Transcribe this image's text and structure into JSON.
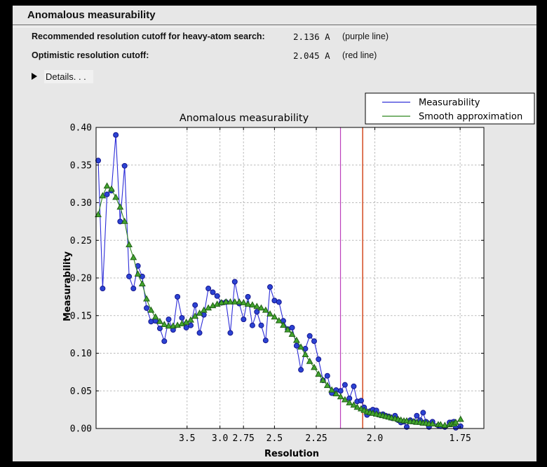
{
  "section": {
    "title": "Anomalous measurability"
  },
  "info": {
    "rows": [
      {
        "label": "Recommended resolution cutoff for heavy-atom search:",
        "value": "2.136 A",
        "note": "(purple line)"
      },
      {
        "label": "Optimistic resolution cutoff:",
        "value": "2.045 A",
        "note": "(red line)"
      }
    ],
    "details_label": "Details. . ."
  },
  "colors": {
    "window_bg": "#e7e7e7",
    "plot_bg": "#ffffff",
    "grid": "#b9b9b9",
    "purple_line": "#bb3fbb",
    "red_line": "#d03c10",
    "series_blue": "#2d2dd8",
    "series_green": "#2f861f"
  },
  "chart_data": {
    "type": "line",
    "title": "Anomalous measurability",
    "xlabel": "Resolution",
    "ylabel": "Measurability",
    "grid": true,
    "legend_position": "top-right",
    "x_axis_units": "1/d^2 (resolution in Angstrom, decreasing d to the right)",
    "x_range": [
      0,
      0.3478
    ],
    "ylim": [
      0,
      0.4
    ],
    "x_ticks": [
      {
        "label": "3.5",
        "s": 0.0816
      },
      {
        "label": "3.0",
        "s": 0.1111
      },
      {
        "label": "2.75",
        "s": 0.1322
      },
      {
        "label": "2.5",
        "s": 0.16
      },
      {
        "label": "2.25",
        "s": 0.1975
      },
      {
        "label": "2.0",
        "s": 0.25
      },
      {
        "label": "1.75",
        "s": 0.3265
      }
    ],
    "y_ticks": [
      {
        "label": "0.00",
        "v": 0.0
      },
      {
        "label": "0.05",
        "v": 0.05
      },
      {
        "label": "0.10",
        "v": 0.1
      },
      {
        "label": "0.15",
        "v": 0.15
      },
      {
        "label": "0.20",
        "v": 0.2
      },
      {
        "label": "0.25",
        "v": 0.25
      },
      {
        "label": "0.30",
        "v": 0.3
      },
      {
        "label": "0.35",
        "v": 0.35
      },
      {
        "label": "0.40",
        "v": 0.4
      }
    ],
    "vlines": [
      {
        "name": "purple line",
        "resolution_A": 2.136,
        "s": 0.2192,
        "color": "#bb3fbb",
        "width": 1.2
      },
      {
        "name": "red line",
        "resolution_A": 2.045,
        "s": 0.2391,
        "color": "#d03c10",
        "width": 1.4
      }
    ],
    "series": [
      {
        "name": "Measurability",
        "marker": "circle",
        "line_color": "#2d2dd8",
        "marker_fill": "#2b43d3",
        "marker_edge": "#16168f",
        "points": [
          [
            0.0019,
            0.356
          ],
          [
            0.0059,
            0.186
          ],
          [
            0.0098,
            0.311
          ],
          [
            0.0138,
            0.316
          ],
          [
            0.0177,
            0.39
          ],
          [
            0.0216,
            0.275
          ],
          [
            0.0256,
            0.349
          ],
          [
            0.0296,
            0.202
          ],
          [
            0.0335,
            0.186
          ],
          [
            0.0375,
            0.216
          ],
          [
            0.0414,
            0.202
          ],
          [
            0.0453,
            0.16
          ],
          [
            0.0493,
            0.142
          ],
          [
            0.0533,
            0.143
          ],
          [
            0.0572,
            0.133
          ],
          [
            0.0612,
            0.116
          ],
          [
            0.0651,
            0.145
          ],
          [
            0.0691,
            0.131
          ],
          [
            0.073,
            0.175
          ],
          [
            0.077,
            0.147
          ],
          [
            0.0809,
            0.134
          ],
          [
            0.0849,
            0.137
          ],
          [
            0.0888,
            0.164
          ],
          [
            0.0928,
            0.127
          ],
          [
            0.0967,
            0.151
          ],
          [
            0.1007,
            0.186
          ],
          [
            0.1047,
            0.181
          ],
          [
            0.1086,
            0.176
          ],
          [
            0.1125,
            0.167
          ],
          [
            0.1165,
            0.168
          ],
          [
            0.1204,
            0.127
          ],
          [
            0.1244,
            0.195
          ],
          [
            0.1284,
            0.166
          ],
          [
            0.1323,
            0.145
          ],
          [
            0.1362,
            0.175
          ],
          [
            0.1402,
            0.137
          ],
          [
            0.1442,
            0.155
          ],
          [
            0.1481,
            0.137
          ],
          [
            0.1521,
            0.117
          ],
          [
            0.156,
            0.188
          ],
          [
            0.16,
            0.17
          ],
          [
            0.164,
            0.168
          ],
          [
            0.1679,
            0.143
          ],
          [
            0.1719,
            0.132
          ],
          [
            0.1758,
            0.134
          ],
          [
            0.1798,
            0.11
          ],
          [
            0.1837,
            0.078
          ],
          [
            0.1877,
            0.106
          ],
          [
            0.1916,
            0.123
          ],
          [
            0.1956,
            0.116
          ],
          [
            0.1995,
            0.092
          ],
          [
            0.2035,
            0.064
          ],
          [
            0.2074,
            0.07
          ],
          [
            0.2114,
            0.047
          ],
          [
            0.2153,
            0.051
          ],
          [
            0.2193,
            0.05
          ],
          [
            0.2232,
            0.058
          ],
          [
            0.2272,
            0.04
          ],
          [
            0.2311,
            0.056
          ],
          [
            0.2342,
            0.036
          ],
          [
            0.2377,
            0.037
          ],
          [
            0.2404,
            0.028
          ],
          [
            0.243,
            0.018
          ],
          [
            0.2457,
            0.023
          ],
          [
            0.2482,
            0.025
          ],
          [
            0.2514,
            0.024
          ],
          [
            0.2545,
            0.018
          ],
          [
            0.2572,
            0.019
          ],
          [
            0.2598,
            0.017
          ],
          [
            0.2625,
            0.016
          ],
          [
            0.265,
            0.014
          ],
          [
            0.2681,
            0.017
          ],
          [
            0.2709,
            0.011
          ],
          [
            0.2734,
            0.008
          ],
          [
            0.2761,
            0.009
          ],
          [
            0.2786,
            0.002
          ],
          [
            0.2818,
            0.011
          ],
          [
            0.2849,
            0.009
          ],
          [
            0.2876,
            0.017
          ],
          [
            0.2906,
            0.011
          ],
          [
            0.2933,
            0.021
          ],
          [
            0.2959,
            0.009
          ],
          [
            0.2986,
            0.002
          ],
          [
            0.3017,
            0.009
          ],
          [
            0.3069,
            0.004
          ],
          [
            0.309,
            0.003
          ],
          [
            0.3128,
            0.002
          ],
          [
            0.317,
            0.008
          ],
          [
            0.3191,
            0.008
          ],
          [
            0.3209,
            0.009
          ],
          [
            0.3226,
            0.001
          ],
          [
            0.3269,
            0.003
          ]
        ]
      },
      {
        "name": "Smooth approximation",
        "marker": "triangle",
        "line_color": "#2f861f",
        "marker_fill": "#43a52e",
        "marker_edge": "#1e5e15",
        "points": [
          [
            0.0019,
            0.284
          ],
          [
            0.0059,
            0.309
          ],
          [
            0.0098,
            0.322
          ],
          [
            0.0138,
            0.318
          ],
          [
            0.0177,
            0.307
          ],
          [
            0.0216,
            0.294
          ],
          [
            0.0256,
            0.275
          ],
          [
            0.0296,
            0.244
          ],
          [
            0.0335,
            0.227
          ],
          [
            0.0375,
            0.205
          ],
          [
            0.0414,
            0.192
          ],
          [
            0.0453,
            0.172
          ],
          [
            0.0493,
            0.157
          ],
          [
            0.0533,
            0.148
          ],
          [
            0.0572,
            0.142
          ],
          [
            0.0612,
            0.138
          ],
          [
            0.0651,
            0.136
          ],
          [
            0.0691,
            0.136
          ],
          [
            0.073,
            0.137
          ],
          [
            0.077,
            0.139
          ],
          [
            0.0809,
            0.141
          ],
          [
            0.0849,
            0.144
          ],
          [
            0.0888,
            0.149
          ],
          [
            0.0928,
            0.153
          ],
          [
            0.0967,
            0.157
          ],
          [
            0.1007,
            0.16
          ],
          [
            0.1047,
            0.163
          ],
          [
            0.1086,
            0.165
          ],
          [
            0.1125,
            0.167
          ],
          [
            0.1165,
            0.168
          ],
          [
            0.1204,
            0.168
          ],
          [
            0.1244,
            0.168
          ],
          [
            0.1284,
            0.168
          ],
          [
            0.1323,
            0.167
          ],
          [
            0.1362,
            0.165
          ],
          [
            0.1402,
            0.164
          ],
          [
            0.1442,
            0.162
          ],
          [
            0.1481,
            0.16
          ],
          [
            0.1521,
            0.157
          ],
          [
            0.156,
            0.152
          ],
          [
            0.16,
            0.148
          ],
          [
            0.164,
            0.143
          ],
          [
            0.1679,
            0.137
          ],
          [
            0.1719,
            0.131
          ],
          [
            0.1758,
            0.125
          ],
          [
            0.1798,
            0.117
          ],
          [
            0.1837,
            0.108
          ],
          [
            0.1877,
            0.098
          ],
          [
            0.1916,
            0.089
          ],
          [
            0.1956,
            0.081
          ],
          [
            0.1995,
            0.072
          ],
          [
            0.2035,
            0.064
          ],
          [
            0.2074,
            0.057
          ],
          [
            0.2114,
            0.051
          ],
          [
            0.2153,
            0.046
          ],
          [
            0.2193,
            0.042
          ],
          [
            0.2232,
            0.038
          ],
          [
            0.2272,
            0.034
          ],
          [
            0.2311,
            0.031
          ],
          [
            0.2342,
            0.028
          ],
          [
            0.2377,
            0.026
          ],
          [
            0.2404,
            0.024
          ],
          [
            0.243,
            0.022
          ],
          [
            0.2457,
            0.021
          ],
          [
            0.2482,
            0.02
          ],
          [
            0.2514,
            0.019
          ],
          [
            0.2545,
            0.018
          ],
          [
            0.2572,
            0.017
          ],
          [
            0.2598,
            0.016
          ],
          [
            0.2625,
            0.015
          ],
          [
            0.265,
            0.014
          ],
          [
            0.2681,
            0.013
          ],
          [
            0.2709,
            0.012
          ],
          [
            0.2734,
            0.011
          ],
          [
            0.2761,
            0.01
          ],
          [
            0.2786,
            0.01
          ],
          [
            0.2818,
            0.009
          ],
          [
            0.2849,
            0.009
          ],
          [
            0.2876,
            0.008
          ],
          [
            0.2906,
            0.008
          ],
          [
            0.2933,
            0.007
          ],
          [
            0.2959,
            0.007
          ],
          [
            0.2986,
            0.006
          ],
          [
            0.3017,
            0.006
          ],
          [
            0.3069,
            0.005
          ],
          [
            0.309,
            0.005
          ],
          [
            0.3128,
            0.004
          ],
          [
            0.317,
            0.005
          ],
          [
            0.3191,
            0.006
          ],
          [
            0.3209,
            0.006
          ],
          [
            0.3226,
            0.008
          ],
          [
            0.3269,
            0.012
          ]
        ]
      }
    ]
  }
}
